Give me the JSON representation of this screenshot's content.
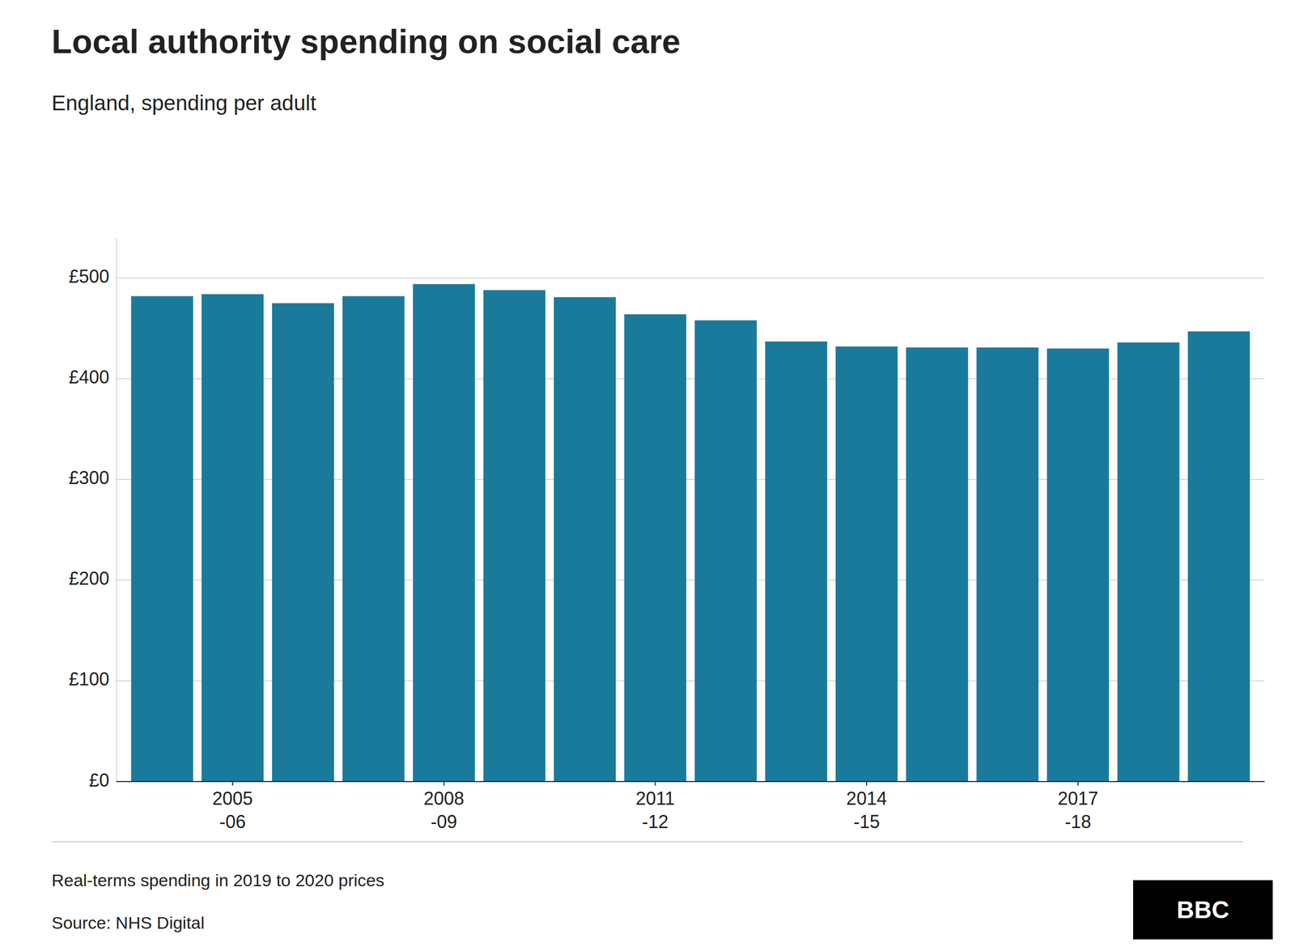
{
  "chart_data": {
    "type": "bar",
    "title": "Local authority spending on social care",
    "subtitle": "England, spending per adult",
    "annotations": [
      "Real-terms spending in 2019 to 2020 prices",
      "Source: NHS Digital",
      "BBC"
    ],
    "categories": [
      null,
      "2005\n-06",
      null,
      null,
      "2008\n-09",
      null,
      null,
      "2011\n-12",
      null,
      null,
      "2014\n-15",
      null,
      null,
      "2017\n-18",
      null,
      null
    ],
    "values": [
      482,
      484,
      475,
      482,
      494,
      488,
      481,
      464,
      458,
      437,
      432,
      431,
      431,
      430,
      436,
      447
    ],
    "color": "#1a7a9b",
    "ylim": [
      0,
      540
    ],
    "yticks": [
      {
        "value": 0,
        "label": "£0"
      },
      {
        "value": 100,
        "label": "£100"
      },
      {
        "value": 200,
        "label": "£200"
      },
      {
        "value": 300,
        "label": "£300"
      },
      {
        "value": 400,
        "label": "£400"
      },
      {
        "value": 500,
        "label": "£500"
      }
    ],
    "grid": true
  }
}
